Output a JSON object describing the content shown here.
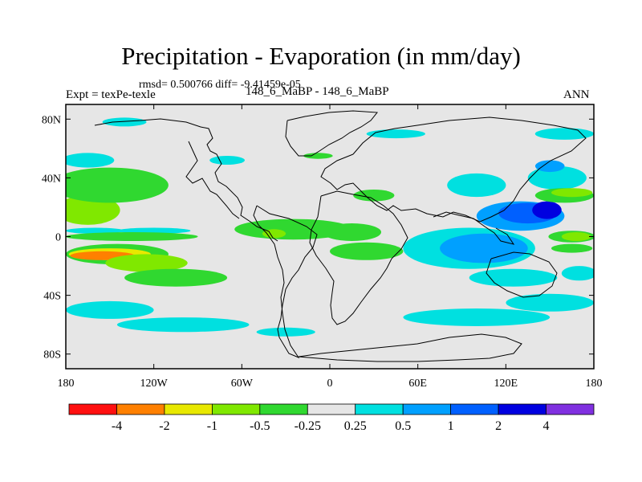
{
  "chart_data": {
    "type": "heatmap",
    "title": "Precipitation - Evaporation (in mm/day)",
    "stats_text": "rmsd= 0.500766  diff= -9.41459e-05",
    "experiment_label": "Expt = texPe-texle",
    "case_label": "148_6_MaBP - 148_6_MaBP",
    "season_label": "ANN",
    "x_axis": {
      "range": [
        -180,
        180
      ],
      "ticks": [
        -180,
        -120,
        -60,
        0,
        60,
        120,
        180
      ],
      "tick_labels": [
        "180",
        "120W",
        "60W",
        "0",
        "60E",
        "120E",
        "180"
      ]
    },
    "y_axis": {
      "range": [
        -90,
        90
      ],
      "ticks": [
        80,
        40,
        0,
        -40,
        -80
      ],
      "tick_labels": [
        "80N",
        "40N",
        "0",
        "40S",
        "80S"
      ]
    },
    "colorbar": {
      "colors": [
        "#ff1010",
        "#ff8000",
        "#e8e800",
        "#80e800",
        "#30d830",
        "#e6e6e6",
        "#00e0e0",
        "#00a0ff",
        "#0060ff",
        "#0000e0",
        "#8030e0"
      ],
      "labels": [
        "-4",
        "-2",
        "-1",
        "-0.5",
        "-0.25",
        "0.25",
        "0.5",
        "1",
        "2",
        "4"
      ]
    },
    "fields": [
      {
        "level": "-0.5",
        "lon": -165,
        "lat": 18,
        "rx": 22,
        "ry": 10
      },
      {
        "level": "-0.25",
        "lon": -150,
        "lat": 35,
        "rx": 40,
        "ry": 12
      },
      {
        "level": "0.25",
        "lon": -165,
        "lat": 52,
        "rx": 18,
        "ry": 5
      },
      {
        "level": "0.25",
        "lon": -160,
        "lat": 4,
        "rx": 20,
        "ry": 2
      },
      {
        "level": "0.25",
        "lon": -120,
        "lat": 4,
        "rx": 25,
        "ry": 2
      },
      {
        "level": "-0.25",
        "lon": -135,
        "lat": 0,
        "rx": 45,
        "ry": 3
      },
      {
        "level": "-0.25",
        "lon": -145,
        "lat": -12,
        "rx": 35,
        "ry": 7
      },
      {
        "level": "-1",
        "lon": -150,
        "lat": -12,
        "rx": 28,
        "ry": 4
      },
      {
        "level": "-2",
        "lon": -155,
        "lat": -13,
        "rx": 22,
        "ry": 3
      },
      {
        "level": "-0.5",
        "lon": -125,
        "lat": -18,
        "rx": 28,
        "ry": 6
      },
      {
        "level": "-0.25",
        "lon": -105,
        "lat": -28,
        "rx": 35,
        "ry": 6
      },
      {
        "level": "0.25",
        "lon": -150,
        "lat": -50,
        "rx": 30,
        "ry": 6
      },
      {
        "level": "0.25",
        "lon": -100,
        "lat": -60,
        "rx": 45,
        "ry": 5
      },
      {
        "level": "0.25",
        "lon": -30,
        "lat": -65,
        "rx": 20,
        "ry": 3
      },
      {
        "level": "-0.25",
        "lon": -25,
        "lat": 5,
        "rx": 40,
        "ry": 7
      },
      {
        "level": "-0.5",
        "lon": -38,
        "lat": 2,
        "rx": 8,
        "ry": 3
      },
      {
        "level": "-0.25",
        "lon": 15,
        "lat": 3,
        "rx": 20,
        "ry": 6
      },
      {
        "level": "-0.25",
        "lon": 25,
        "lat": -10,
        "rx": 25,
        "ry": 6
      },
      {
        "level": "-0.25",
        "lon": 30,
        "lat": 28,
        "rx": 14,
        "ry": 4
      },
      {
        "level": "-0.25",
        "lon": -8,
        "lat": 55,
        "rx": 10,
        "ry": 2
      },
      {
        "level": "0.25",
        "lon": -70,
        "lat": 52,
        "rx": 12,
        "ry": 3
      },
      {
        "level": "0.25",
        "lon": 45,
        "lat": 70,
        "rx": 20,
        "ry": 3
      },
      {
        "level": "0.25",
        "lon": 100,
        "lat": 35,
        "rx": 20,
        "ry": 8
      },
      {
        "level": "0.25",
        "lon": 95,
        "lat": -8,
        "rx": 45,
        "ry": 14
      },
      {
        "level": "0.5",
        "lon": 105,
        "lat": -8,
        "rx": 30,
        "ry": 10
      },
      {
        "level": "0.25",
        "lon": 125,
        "lat": -28,
        "rx": 30,
        "ry": 6
      },
      {
        "level": "0.25",
        "lon": 150,
        "lat": -45,
        "rx": 30,
        "ry": 6
      },
      {
        "level": "0.25",
        "lon": 100,
        "lat": -55,
        "rx": 50,
        "ry": 6
      },
      {
        "level": "0.5",
        "lon": 130,
        "lat": 14,
        "rx": 30,
        "ry": 10
      },
      {
        "level": "1",
        "lon": 135,
        "lat": 16,
        "rx": 20,
        "ry": 7
      },
      {
        "level": "2",
        "lon": 148,
        "lat": 18,
        "rx": 10,
        "ry": 6
      },
      {
        "level": "0.25",
        "lon": 155,
        "lat": 40,
        "rx": 20,
        "ry": 8
      },
      {
        "level": "0.5",
        "lon": 150,
        "lat": 48,
        "rx": 10,
        "ry": 4
      },
      {
        "level": "-0.25",
        "lon": 160,
        "lat": 28,
        "rx": 20,
        "ry": 5
      },
      {
        "level": "-0.5",
        "lon": 165,
        "lat": 30,
        "rx": 14,
        "ry": 3
      },
      {
        "level": "-0.25",
        "lon": 165,
        "lat": 0,
        "rx": 16,
        "ry": 4
      },
      {
        "level": "-0.5",
        "lon": 168,
        "lat": 0,
        "rx": 10,
        "ry": 3
      },
      {
        "level": "-0.25",
        "lon": 165,
        "lat": -8,
        "rx": 14,
        "ry": 3
      },
      {
        "level": "0.25",
        "lon": 170,
        "lat": -25,
        "rx": 12,
        "ry": 5
      },
      {
        "level": "0.25",
        "lon": 160,
        "lat": 70,
        "rx": 20,
        "ry": 4
      },
      {
        "level": "0.25",
        "lon": -140,
        "lat": 78,
        "rx": 15,
        "ry": 3
      }
    ]
  }
}
